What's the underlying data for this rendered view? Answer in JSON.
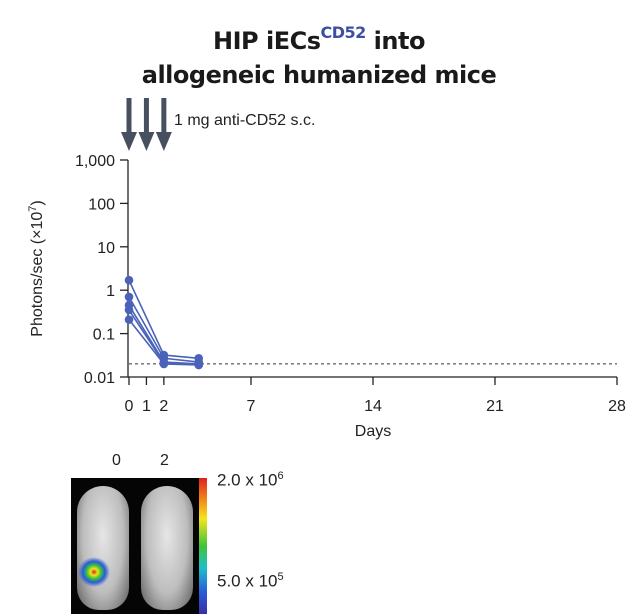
{
  "title": {
    "line1_prefix": "HIP iECs",
    "line1_sup": "CD52",
    "line1_suffix": " into",
    "line2": "allogeneic humanized mice"
  },
  "annotation": {
    "text": "1 mg anti-CD52 s.c.",
    "arrow_days": [
      0,
      1,
      2
    ]
  },
  "image_panel": {
    "day_labels": [
      "0",
      "2"
    ],
    "colorbar_max": "2.0 x 10",
    "colorbar_max_exp": "6",
    "colorbar_min": "5.0 x 10",
    "colorbar_min_exp": "5"
  },
  "chart_data": {
    "type": "line",
    "xlabel": "Days",
    "ylabel": "Photons/sec (×10",
    "ylabel_exp": "7",
    "ylabel_suffix": ")",
    "xlim": [
      0,
      28
    ],
    "ylim": [
      0.01,
      1000
    ],
    "yscale": "log",
    "x_ticks": [
      0,
      1,
      2,
      7,
      14,
      21,
      28
    ],
    "y_ticks": [
      0.01,
      0.1,
      1,
      10,
      100,
      1000
    ],
    "y_tick_labels": [
      "0.01",
      "0.1",
      "1",
      "10",
      "100",
      "1,000"
    ],
    "threshold": 0.02,
    "series": [
      {
        "x": [
          0,
          2,
          4
        ],
        "values": [
          1.7,
          0.032,
          0.027
        ]
      },
      {
        "x": [
          0,
          2,
          4
        ],
        "values": [
          0.7,
          0.027,
          0.022
        ]
      },
      {
        "x": [
          0,
          2,
          4
        ],
        "values": [
          0.45,
          0.022,
          0.02
        ]
      },
      {
        "x": [
          0,
          2,
          4
        ],
        "values": [
          0.35,
          0.021,
          0.019
        ]
      },
      {
        "x": [
          0,
          2,
          4
        ],
        "values": [
          0.21,
          0.02,
          0.019
        ]
      }
    ],
    "series_color": "#4a63b8"
  }
}
